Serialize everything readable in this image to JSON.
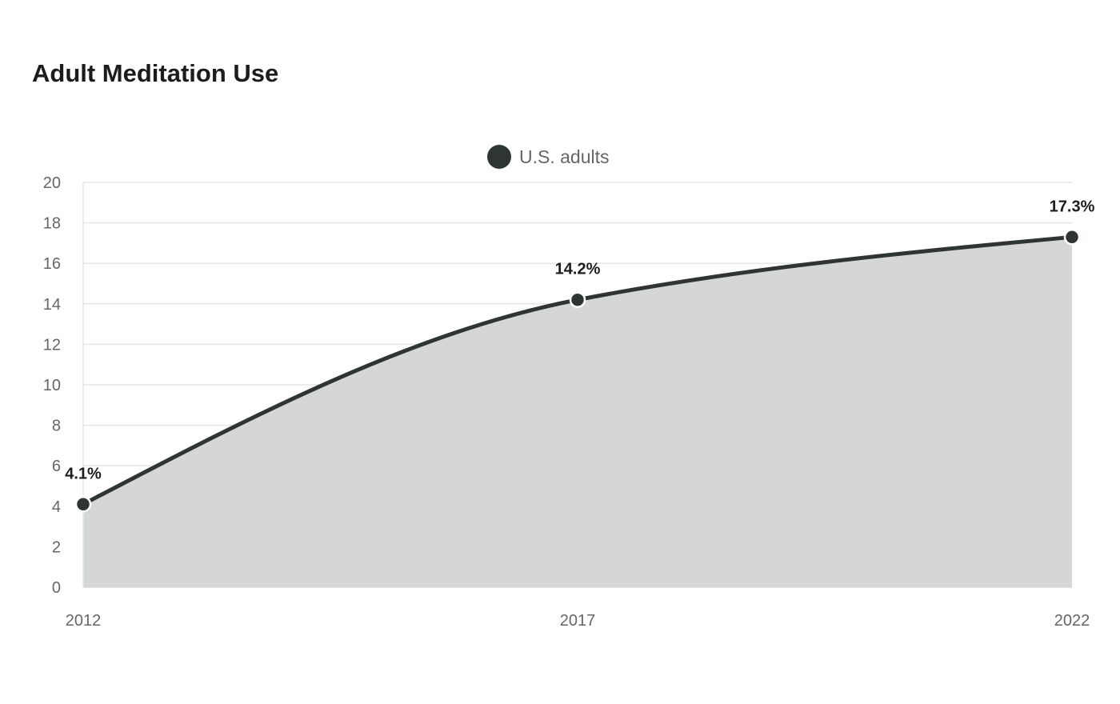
{
  "chart_data": {
    "type": "area",
    "title": "Adult Meditation Use",
    "categories": [
      "2012",
      "2017",
      "2022"
    ],
    "series": [
      {
        "name": "U.S. adults",
        "values": [
          4.1,
          14.2,
          17.3
        ],
        "data_labels": [
          "4.1%",
          "14.2%",
          "17.3%"
        ],
        "color": "#2f3435",
        "fill_color": "#d5d6d6"
      }
    ],
    "y_ticks": [
      "0",
      "2",
      "4",
      "6",
      "8",
      "10",
      "12",
      "14",
      "16",
      "18",
      "20"
    ],
    "ylim": [
      0,
      20
    ],
    "xlabel": "",
    "ylabel": "",
    "grid": true,
    "legend": "top-center",
    "colors": {
      "grid": "#e6e6e6",
      "axis": "#d9d9d9",
      "text": "#666666",
      "title": "#1c1c1c"
    }
  }
}
